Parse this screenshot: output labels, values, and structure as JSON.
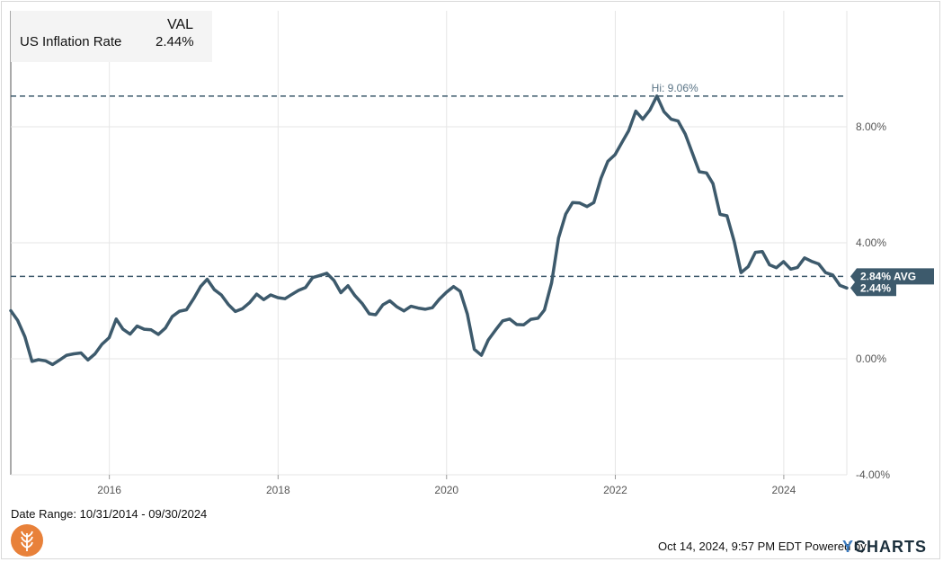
{
  "legend": {
    "header": "VAL",
    "series_name": "US Inflation Rate",
    "value": "2.44%"
  },
  "date_range": "Date Range: 10/31/2014 - 09/30/2024",
  "footer": {
    "timestamp": "Oct 14, 2024, 9:57 PM EDT Powered by",
    "brand_y": "Y",
    "brand_rest": "CHARTS"
  },
  "colors": {
    "line": "#3d5a6c",
    "label_bg": "#3d5a6c",
    "grid": "#e6e6e6",
    "logo": "#e8813a"
  },
  "chart_data": {
    "type": "line",
    "x_label_format": "year",
    "xlim": [
      "2014-10-31",
      "2024-09-30"
    ],
    "ylim": [
      -4,
      12
    ],
    "y_ticks": [
      -4,
      0,
      4,
      8
    ],
    "y_tick_labels": [
      "-4.00%",
      "0.00%",
      "4.00%",
      "8.00%"
    ],
    "x_tick_labels": [
      "2016",
      "2018",
      "2020",
      "2022",
      "2024"
    ],
    "x_ticks": [
      "2016-01-01",
      "2018-01-01",
      "2020-01-01",
      "2022-01-01",
      "2024-01-01"
    ],
    "grid": true,
    "series": [
      {
        "name": "US Inflation Rate",
        "points": [
          [
            "2014-10-31",
            1.66
          ],
          [
            "2014-11-30",
            1.32
          ],
          [
            "2014-12-31",
            0.76
          ],
          [
            "2015-01-31",
            -0.09
          ],
          [
            "2015-02-28",
            -0.03
          ],
          [
            "2015-03-31",
            -0.07
          ],
          [
            "2015-04-30",
            -0.2
          ],
          [
            "2015-05-31",
            -0.04
          ],
          [
            "2015-06-30",
            0.12
          ],
          [
            "2015-07-31",
            0.17
          ],
          [
            "2015-08-31",
            0.2
          ],
          [
            "2015-09-30",
            -0.04
          ],
          [
            "2015-10-31",
            0.17
          ],
          [
            "2015-11-30",
            0.5
          ],
          [
            "2015-12-31",
            0.73
          ],
          [
            "2016-01-31",
            1.37
          ],
          [
            "2016-02-29",
            1.02
          ],
          [
            "2016-03-31",
            0.85
          ],
          [
            "2016-04-30",
            1.13
          ],
          [
            "2016-05-31",
            1.02
          ],
          [
            "2016-06-30",
            1.0
          ],
          [
            "2016-07-31",
            0.84
          ],
          [
            "2016-08-31",
            1.06
          ],
          [
            "2016-09-30",
            1.46
          ],
          [
            "2016-10-31",
            1.64
          ],
          [
            "2016-11-30",
            1.69
          ],
          [
            "2016-12-31",
            2.07
          ],
          [
            "2017-01-31",
            2.5
          ],
          [
            "2017-02-28",
            2.74
          ],
          [
            "2017-03-31",
            2.38
          ],
          [
            "2017-04-30",
            2.2
          ],
          [
            "2017-05-31",
            1.87
          ],
          [
            "2017-06-30",
            1.63
          ],
          [
            "2017-07-31",
            1.73
          ],
          [
            "2017-08-31",
            1.94
          ],
          [
            "2017-09-30",
            2.23
          ],
          [
            "2017-10-31",
            2.04
          ],
          [
            "2017-11-30",
            2.2
          ],
          [
            "2017-12-31",
            2.11
          ],
          [
            "2018-01-31",
            2.07
          ],
          [
            "2018-02-28",
            2.21
          ],
          [
            "2018-03-31",
            2.36
          ],
          [
            "2018-04-30",
            2.46
          ],
          [
            "2018-05-31",
            2.8
          ],
          [
            "2018-06-30",
            2.87
          ],
          [
            "2018-07-31",
            2.95
          ],
          [
            "2018-08-31",
            2.7
          ],
          [
            "2018-09-30",
            2.28
          ],
          [
            "2018-10-31",
            2.52
          ],
          [
            "2018-11-30",
            2.18
          ],
          [
            "2018-12-31",
            1.91
          ],
          [
            "2019-01-31",
            1.55
          ],
          [
            "2019-02-28",
            1.52
          ],
          [
            "2019-03-31",
            1.86
          ],
          [
            "2019-04-30",
            2.0
          ],
          [
            "2019-05-31",
            1.79
          ],
          [
            "2019-06-30",
            1.65
          ],
          [
            "2019-07-31",
            1.81
          ],
          [
            "2019-08-31",
            1.75
          ],
          [
            "2019-09-30",
            1.71
          ],
          [
            "2019-10-31",
            1.76
          ],
          [
            "2019-11-30",
            2.05
          ],
          [
            "2019-12-31",
            2.29
          ],
          [
            "2020-01-31",
            2.49
          ],
          [
            "2020-02-29",
            2.33
          ],
          [
            "2020-03-31",
            1.54
          ],
          [
            "2020-04-30",
            0.33
          ],
          [
            "2020-05-31",
            0.12
          ],
          [
            "2020-06-30",
            0.65
          ],
          [
            "2020-07-31",
            0.99
          ],
          [
            "2020-08-31",
            1.31
          ],
          [
            "2020-09-30",
            1.37
          ],
          [
            "2020-10-31",
            1.18
          ],
          [
            "2020-11-30",
            1.17
          ],
          [
            "2020-12-31",
            1.36
          ],
          [
            "2021-01-31",
            1.4
          ],
          [
            "2021-02-28",
            1.68
          ],
          [
            "2021-03-31",
            2.62
          ],
          [
            "2021-04-30",
            4.16
          ],
          [
            "2021-05-31",
            4.99
          ],
          [
            "2021-06-30",
            5.39
          ],
          [
            "2021-07-31",
            5.37
          ],
          [
            "2021-08-31",
            5.25
          ],
          [
            "2021-09-30",
            5.39
          ],
          [
            "2021-10-31",
            6.22
          ],
          [
            "2021-11-30",
            6.81
          ],
          [
            "2021-12-31",
            7.04
          ],
          [
            "2022-01-31",
            7.48
          ],
          [
            "2022-02-28",
            7.87
          ],
          [
            "2022-03-31",
            8.54
          ],
          [
            "2022-04-30",
            8.26
          ],
          [
            "2022-05-31",
            8.58
          ],
          [
            "2022-06-30",
            9.06
          ],
          [
            "2022-07-31",
            8.52
          ],
          [
            "2022-08-31",
            8.26
          ],
          [
            "2022-09-30",
            8.2
          ],
          [
            "2022-10-31",
            7.75
          ],
          [
            "2022-11-30",
            7.11
          ],
          [
            "2022-12-31",
            6.45
          ],
          [
            "2023-01-31",
            6.41
          ],
          [
            "2023-02-28",
            6.04
          ],
          [
            "2023-03-31",
            4.98
          ],
          [
            "2023-04-30",
            4.93
          ],
          [
            "2023-05-31",
            4.05
          ],
          [
            "2023-06-30",
            2.97
          ],
          [
            "2023-07-31",
            3.18
          ],
          [
            "2023-08-31",
            3.67
          ],
          [
            "2023-09-30",
            3.7
          ],
          [
            "2023-10-31",
            3.24
          ],
          [
            "2023-11-30",
            3.14
          ],
          [
            "2023-12-31",
            3.35
          ],
          [
            "2024-01-31",
            3.09
          ],
          [
            "2024-02-29",
            3.15
          ],
          [
            "2024-03-31",
            3.48
          ],
          [
            "2024-04-30",
            3.36
          ],
          [
            "2024-05-31",
            3.27
          ],
          [
            "2024-06-30",
            2.97
          ],
          [
            "2024-07-31",
            2.89
          ],
          [
            "2024-08-31",
            2.53
          ],
          [
            "2024-09-30",
            2.44
          ]
        ]
      }
    ],
    "annotations": {
      "high": {
        "label": "Hi: 9.06%",
        "value": 9.06,
        "date": "2022-06-30"
      },
      "average": {
        "label": "2.84% AVG",
        "value": 2.84
      },
      "last": {
        "label": "2.44%",
        "value": 2.44
      }
    }
  }
}
